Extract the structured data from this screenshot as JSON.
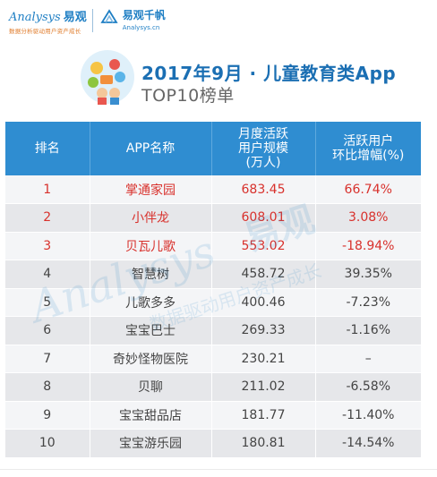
{
  "brand": {
    "analysys_en": "Analysys",
    "analysys_cn": "易观",
    "analysys_slogan": "数据分析驱动用户资产成长",
    "qianfan_cn": "易观千帆",
    "qianfan_en": "Analysys.cn"
  },
  "title": {
    "line1": "2017年9月 · 儿童教育类App",
    "line2": "TOP10榜单"
  },
  "table": {
    "headers": {
      "rank": "排名",
      "app": "APP名称",
      "mau_l1": "月度活跃",
      "mau_l2": "用户规模",
      "mau_l3": "(万人)",
      "growth_l1": "活跃用户",
      "growth_l2": "环比增幅(%)"
    },
    "rows": [
      {
        "rank": "1",
        "app": "掌通家园",
        "mau": "683.45",
        "growth": "66.74%"
      },
      {
        "rank": "2",
        "app": "小伴龙",
        "mau": "608.01",
        "growth": "3.08%"
      },
      {
        "rank": "3",
        "app": "贝瓦儿歌",
        "mau": "553.02",
        "growth": "-18.94%"
      },
      {
        "rank": "4",
        "app": "智慧树",
        "mau": "458.72",
        "growth": "39.35%"
      },
      {
        "rank": "5",
        "app": "儿歌多多",
        "mau": "400.46",
        "growth": "-7.23%"
      },
      {
        "rank": "6",
        "app": "宝宝巴士",
        "mau": "269.33",
        "growth": "-1.16%"
      },
      {
        "rank": "7",
        "app": "奇妙怪物医院",
        "mau": "230.21",
        "growth": "–"
      },
      {
        "rank": "8",
        "app": "贝聊",
        "mau": "211.02",
        "growth": "-6.58%"
      },
      {
        "rank": "9",
        "app": "宝宝甜品店",
        "mau": "181.77",
        "growth": "-11.40%"
      },
      {
        "rank": "10",
        "app": "宝宝游乐园",
        "mau": "180.81",
        "growth": "-14.54%"
      }
    ]
  },
  "watermark": {
    "en": "Analysys",
    "cn": "易观",
    "slogan": "数据驱动用户资产成长"
  },
  "colors": {
    "header_blue": "#2f8dd1",
    "title_blue": "#1b6fb3",
    "top3_red": "#d8312c",
    "row_light": "#f4f5f7",
    "row_dark": "#e6e7ea"
  }
}
